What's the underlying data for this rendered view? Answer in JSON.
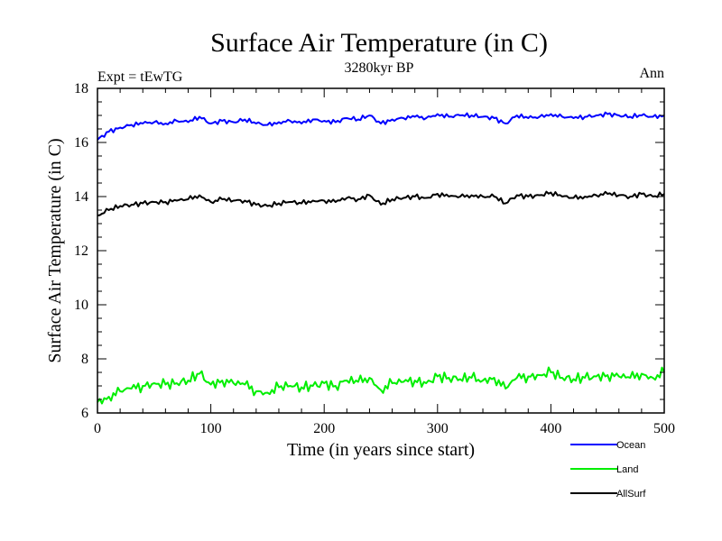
{
  "chart_data": {
    "type": "line",
    "title": "Surface Air Temperature (in C)",
    "subtitle": "3280kyr BP",
    "left_label": "Expt = tEwTG",
    "right_label": "Ann",
    "xlabel": "Time (in years since start)",
    "ylabel": "Surface Air Temperature (in C)",
    "xlim": [
      0,
      500
    ],
    "ylim": [
      6,
      18
    ],
    "x_ticks": [
      0,
      100,
      200,
      300,
      400,
      500
    ],
    "y_ticks": [
      6,
      8,
      10,
      12,
      14,
      16,
      18
    ],
    "grid": false,
    "legend_position": "bottom-right",
    "series": [
      {
        "name": "Ocean",
        "color": "#0000ff",
        "x": [
          0,
          10,
          20,
          30,
          40,
          50,
          60,
          70,
          80,
          90,
          100,
          110,
          120,
          130,
          140,
          150,
          160,
          170,
          180,
          190,
          200,
          210,
          220,
          230,
          240,
          250,
          260,
          270,
          280,
          290,
          300,
          310,
          320,
          330,
          340,
          350,
          360,
          370,
          380,
          390,
          400,
          410,
          420,
          430,
          440,
          450,
          460,
          470,
          480,
          490,
          500
        ],
        "values": [
          16.1,
          16.4,
          16.55,
          16.65,
          16.7,
          16.75,
          16.7,
          16.8,
          16.75,
          16.95,
          16.7,
          16.8,
          16.75,
          16.85,
          16.7,
          16.65,
          16.75,
          16.8,
          16.7,
          16.85,
          16.8,
          16.75,
          16.9,
          16.85,
          17.0,
          16.7,
          16.85,
          16.9,
          16.95,
          16.9,
          17.05,
          16.95,
          17.0,
          17.0,
          16.95,
          16.9,
          16.7,
          17.0,
          16.9,
          16.95,
          17.05,
          16.95,
          16.9,
          16.95,
          17.0,
          17.05,
          17.0,
          16.95,
          17.0,
          16.95,
          17.0
        ]
      },
      {
        "name": "Land",
        "color": "#00ee00",
        "x": [
          0,
          10,
          20,
          30,
          40,
          50,
          60,
          70,
          80,
          90,
          100,
          110,
          120,
          130,
          140,
          150,
          160,
          170,
          180,
          190,
          200,
          210,
          220,
          230,
          240,
          250,
          260,
          270,
          280,
          290,
          300,
          310,
          320,
          330,
          340,
          350,
          360,
          370,
          380,
          390,
          400,
          410,
          420,
          430,
          440,
          450,
          460,
          470,
          480,
          490,
          500
        ],
        "values": [
          6.4,
          6.6,
          6.8,
          6.9,
          7.0,
          7.1,
          7.05,
          7.1,
          7.2,
          7.45,
          7.05,
          7.2,
          7.1,
          7.05,
          6.8,
          6.75,
          6.95,
          7.0,
          6.95,
          7.0,
          7.1,
          7.0,
          7.2,
          7.15,
          7.3,
          6.85,
          7.1,
          7.15,
          7.2,
          7.1,
          7.35,
          7.3,
          7.25,
          7.3,
          7.2,
          7.3,
          6.9,
          7.3,
          7.35,
          7.4,
          7.5,
          7.3,
          7.25,
          7.3,
          7.35,
          7.4,
          7.35,
          7.3,
          7.45,
          7.3,
          7.5
        ]
      },
      {
        "name": "AllSurf",
        "color": "#000000",
        "x": [
          0,
          10,
          20,
          30,
          40,
          50,
          60,
          70,
          80,
          90,
          100,
          110,
          120,
          130,
          140,
          150,
          160,
          170,
          180,
          190,
          200,
          210,
          220,
          230,
          240,
          250,
          260,
          270,
          280,
          290,
          300,
          310,
          320,
          330,
          340,
          350,
          360,
          370,
          380,
          390,
          400,
          410,
          420,
          430,
          440,
          450,
          460,
          470,
          480,
          490,
          500
        ],
        "values": [
          13.3,
          13.5,
          13.65,
          13.7,
          13.75,
          13.8,
          13.8,
          13.85,
          13.9,
          14.05,
          13.8,
          13.9,
          13.85,
          13.85,
          13.7,
          13.65,
          13.75,
          13.8,
          13.75,
          13.85,
          13.85,
          13.8,
          13.95,
          13.9,
          14.05,
          13.7,
          13.9,
          13.95,
          14.0,
          13.95,
          14.1,
          14.0,
          14.0,
          14.05,
          14.0,
          14.0,
          13.75,
          14.05,
          14.0,
          14.05,
          14.15,
          14.0,
          13.95,
          14.0,
          14.05,
          14.1,
          14.05,
          14.0,
          14.1,
          14.0,
          14.1
        ]
      }
    ]
  }
}
